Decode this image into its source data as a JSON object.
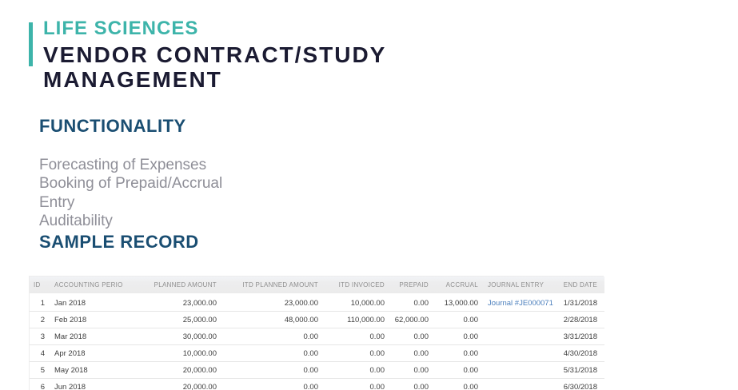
{
  "header": {
    "category": "LIFE SCIENCES",
    "title_lines": [
      "VENDOR CONTRACT/STUDY",
      "MANAGEMENT"
    ]
  },
  "functionality": {
    "heading": "FUNCTIONALITY",
    "items": [
      "Forecasting of Expenses",
      "Booking of Prepaid/Accrual Entry",
      "Auditability"
    ]
  },
  "sample_record": {
    "heading": "SAMPLE RECORD",
    "table": {
      "columns": [
        "ID",
        "ACCOUNTING PERIOD",
        "PLANNED AMOUNT",
        "ITD PLANNED AMOUNT",
        "ITD INVOICED",
        "PREPAID",
        "ACCRUAL",
        "JOURNAL ENTRY",
        "END DATE"
      ],
      "rows": [
        {
          "id": "1",
          "period": "Jan 2018",
          "planned": "23,000.00",
          "itd_planned": "23,000.00",
          "itd_invoiced": "10,000.00",
          "prepaid": "0.00",
          "accrual": "13,000.00",
          "journal": "Journal #JE000071",
          "end_date": "1/31/2018"
        },
        {
          "id": "2",
          "period": "Feb 2018",
          "planned": "25,000.00",
          "itd_planned": "48,000.00",
          "itd_invoiced": "110,000.00",
          "prepaid": "62,000.00",
          "accrual": "0.00",
          "journal": "",
          "end_date": "2/28/2018"
        },
        {
          "id": "3",
          "period": "Mar 2018",
          "planned": "30,000.00",
          "itd_planned": "0.00",
          "itd_invoiced": "0.00",
          "prepaid": "0.00",
          "accrual": "0.00",
          "journal": "",
          "end_date": "3/31/2018"
        },
        {
          "id": "4",
          "period": "Apr 2018",
          "planned": "10,000.00",
          "itd_planned": "0.00",
          "itd_invoiced": "0.00",
          "prepaid": "0.00",
          "accrual": "0.00",
          "journal": "",
          "end_date": "4/30/2018"
        },
        {
          "id": "5",
          "period": "May 2018",
          "planned": "20,000.00",
          "itd_planned": "0.00",
          "itd_invoiced": "0.00",
          "prepaid": "0.00",
          "accrual": "0.00",
          "journal": "",
          "end_date": "5/31/2018"
        },
        {
          "id": "6",
          "period": "Jun 2018",
          "planned": "20,000.00",
          "itd_planned": "0.00",
          "itd_invoiced": "0.00",
          "prepaid": "0.00",
          "accrual": "0.00",
          "journal": "",
          "end_date": "6/30/2018"
        }
      ]
    }
  },
  "colors": {
    "accent_teal": "#3db4aa",
    "title_navy": "#1b1b32",
    "heading_blue": "#1a4e72",
    "body_gray": "#8f8f98",
    "link_blue": "#4b7fbd",
    "table_header_bg": "#ebebeb",
    "table_header_text": "#8f8f8f",
    "table_cell_text": "#3d3d3d"
  }
}
